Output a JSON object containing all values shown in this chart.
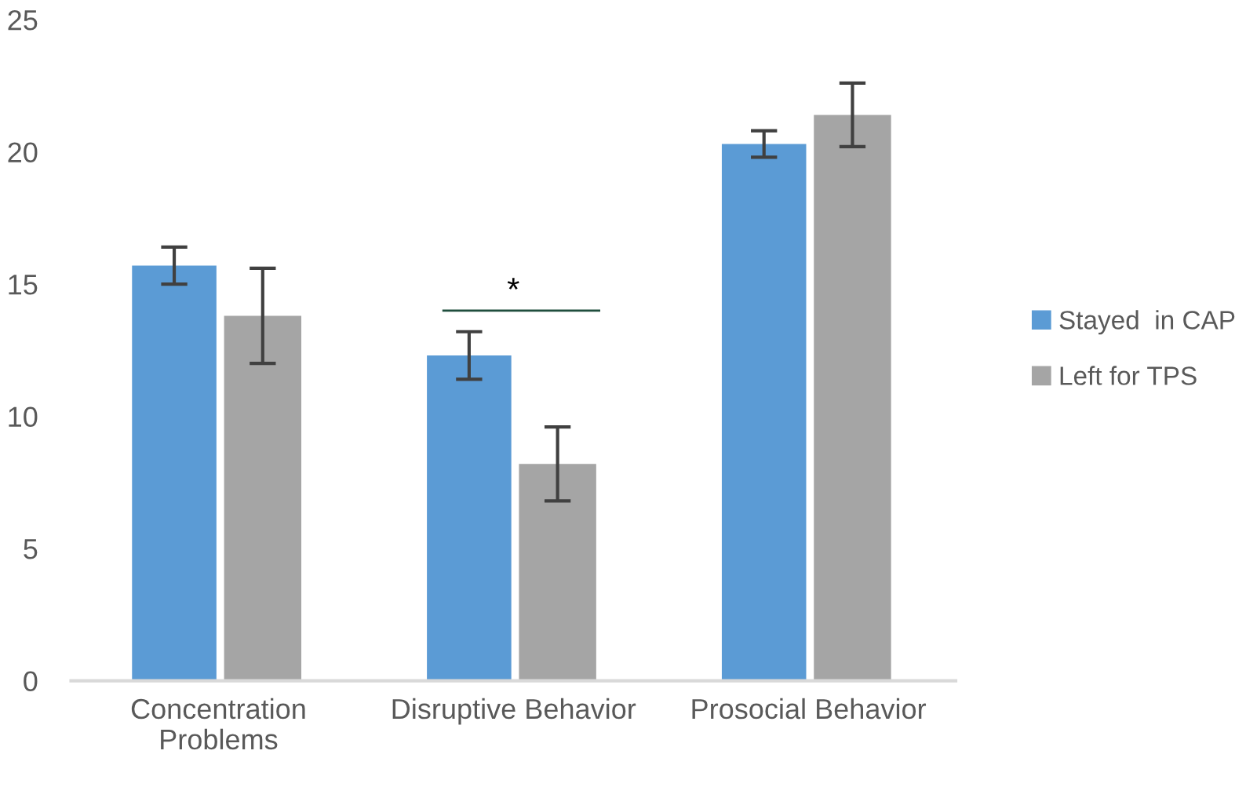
{
  "chart_data": {
    "type": "bar",
    "categories": [
      "Concentration\nProblems",
      "Disruptive Behavior",
      "Prosocial Behavior"
    ],
    "series": [
      {
        "name": "Stayed  in CAP",
        "color": "#5b9bd5",
        "values": [
          15.7,
          12.3,
          20.3
        ],
        "errors": [
          0.7,
          0.9,
          0.5
        ]
      },
      {
        "name": "Left for TPS",
        "color": "#a5a5a5",
        "values": [
          13.8,
          8.2,
          21.4
        ],
        "errors": [
          1.8,
          1.4,
          1.2
        ]
      }
    ],
    "annotations": [
      "*"
    ],
    "ylim": [
      0,
      25
    ],
    "yticks": [
      0,
      5,
      10,
      15,
      20,
      25
    ],
    "grid": false,
    "legend": "right"
  }
}
